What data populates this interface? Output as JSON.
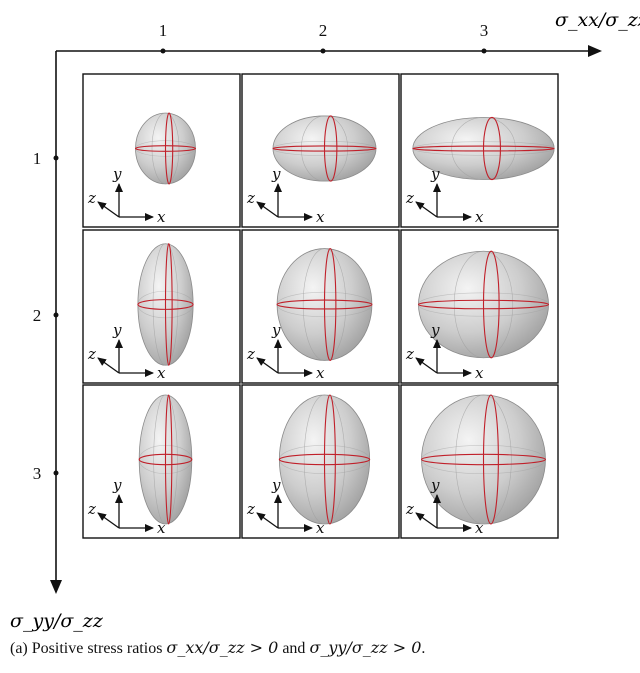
{
  "figure": {
    "x_axis_label": "σ_xx/σ_zz",
    "y_axis_label": "σ_yy/σ_zz",
    "x_ticks": [
      "1",
      "2",
      "3"
    ],
    "y_ticks": [
      "1",
      "2",
      "3"
    ],
    "axis_letters": {
      "x": "x",
      "y": "y",
      "z": "z"
    },
    "caption": {
      "prefix": "(a) Positive stress ratios ",
      "expr1": "σ_xx/σ_zz > 0",
      "joiner": " and ",
      "expr2": "σ_yy/σ_zz > 0",
      "suffix": "."
    }
  },
  "colors": {
    "axis": "#111111",
    "ellipsoid_fill": "#c9c9c9",
    "ellipsoid_highlight": "#f2f2f2",
    "red_curve": "#c0202a"
  },
  "cells": [
    {
      "row": "1",
      "col": "1",
      "sxx": 1,
      "syy": 1
    },
    {
      "row": "1",
      "col": "2",
      "sxx": 2,
      "syy": 1
    },
    {
      "row": "1",
      "col": "3",
      "sxx": 3,
      "syy": 1
    },
    {
      "row": "2",
      "col": "1",
      "sxx": 1,
      "syy": 2
    },
    {
      "row": "2",
      "col": "2",
      "sxx": 2,
      "syy": 2
    },
    {
      "row": "2",
      "col": "3",
      "sxx": 3,
      "syy": 2
    },
    {
      "row": "3",
      "col": "1",
      "sxx": 1,
      "syy": 3
    },
    {
      "row": "3",
      "col": "2",
      "sxx": 2,
      "syy": 3
    },
    {
      "row": "3",
      "col": "3",
      "sxx": 3,
      "syy": 3
    }
  ]
}
